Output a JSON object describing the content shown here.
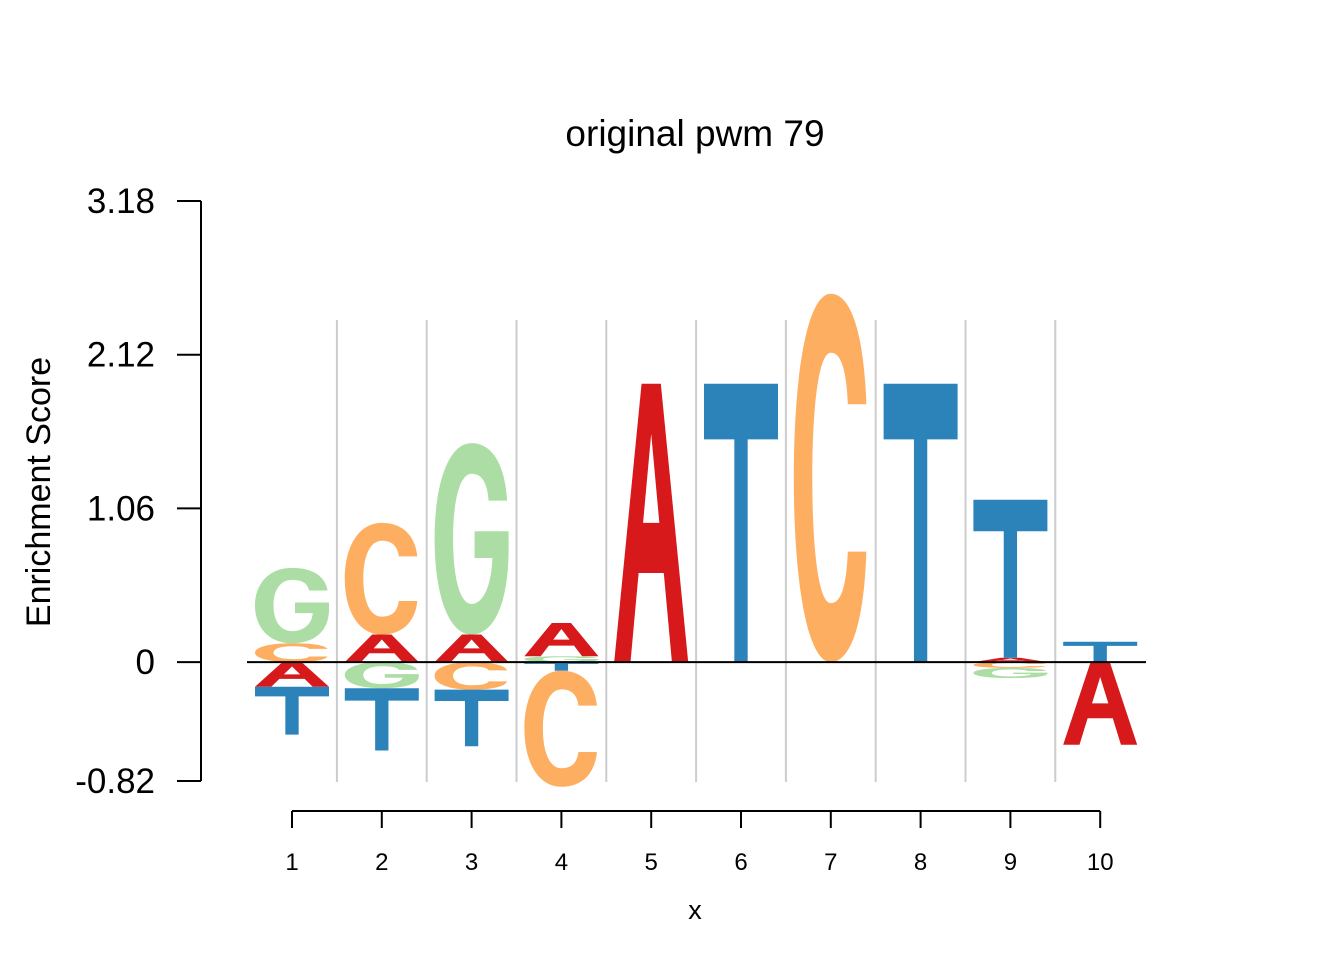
{
  "chart_data": {
    "type": "sequence-logo",
    "title": "original pwm 79",
    "xlabel": "x",
    "ylabel": "Enrichment Score",
    "ylim": [
      -0.82,
      3.18
    ],
    "yticks": [
      "3.18",
      "2.12",
      "1.06",
      "0",
      "-0.82"
    ],
    "grid": "vertical separators between positions",
    "colors": {
      "A": "#d7191c",
      "C": "#fdae61",
      "G": "#abdda4",
      "T": "#2b83ba"
    },
    "positions": [
      {
        "x": "1",
        "positive": [
          {
            "letter": "C",
            "value": 0.13
          },
          {
            "letter": "G",
            "value": 0.52
          }
        ],
        "negative": [
          {
            "letter": "A",
            "value": 0.17
          },
          {
            "letter": "T",
            "value": 0.33
          }
        ]
      },
      {
        "x": "2",
        "positive": [
          {
            "letter": "A",
            "value": 0.19
          },
          {
            "letter": "C",
            "value": 0.77
          }
        ],
        "negative": [
          {
            "letter": "G",
            "value": 0.18
          },
          {
            "letter": "T",
            "value": 0.43
          }
        ]
      },
      {
        "x": "3",
        "positive": [
          {
            "letter": "A",
            "value": 0.19
          },
          {
            "letter": "G",
            "value": 1.32
          }
        ],
        "negative": [
          {
            "letter": "C",
            "value": 0.19
          },
          {
            "letter": "T",
            "value": 0.39
          }
        ]
      },
      {
        "x": "4",
        "positive": [
          {
            "letter": "G",
            "value": 0.04
          },
          {
            "letter": "A",
            "value": 0.23
          }
        ],
        "negative": [
          {
            "letter": "T",
            "value": 0.06
          },
          {
            "letter": "C",
            "value": 0.8
          }
        ]
      },
      {
        "x": "5",
        "positive": [
          {
            "letter": "A",
            "value": 1.92
          }
        ],
        "negative": []
      },
      {
        "x": "6",
        "positive": [
          {
            "letter": "T",
            "value": 1.92
          }
        ],
        "negative": []
      },
      {
        "x": "7",
        "positive": [
          {
            "letter": "C",
            "value": 2.54
          }
        ],
        "negative": []
      },
      {
        "x": "8",
        "positive": [
          {
            "letter": "T",
            "value": 1.92
          }
        ],
        "negative": []
      },
      {
        "x": "9",
        "positive": [
          {
            "letter": "A",
            "value": 0.03
          },
          {
            "letter": "T",
            "value": 1.09
          }
        ],
        "negative": [
          {
            "letter": "C",
            "value": 0.04
          },
          {
            "letter": "G",
            "value": 0.07
          }
        ]
      },
      {
        "x": "10",
        "positive": [
          {
            "letter": "T",
            "value": 0.14
          }
        ],
        "negative": [
          {
            "letter": "A",
            "value": 0.57
          }
        ]
      }
    ]
  }
}
